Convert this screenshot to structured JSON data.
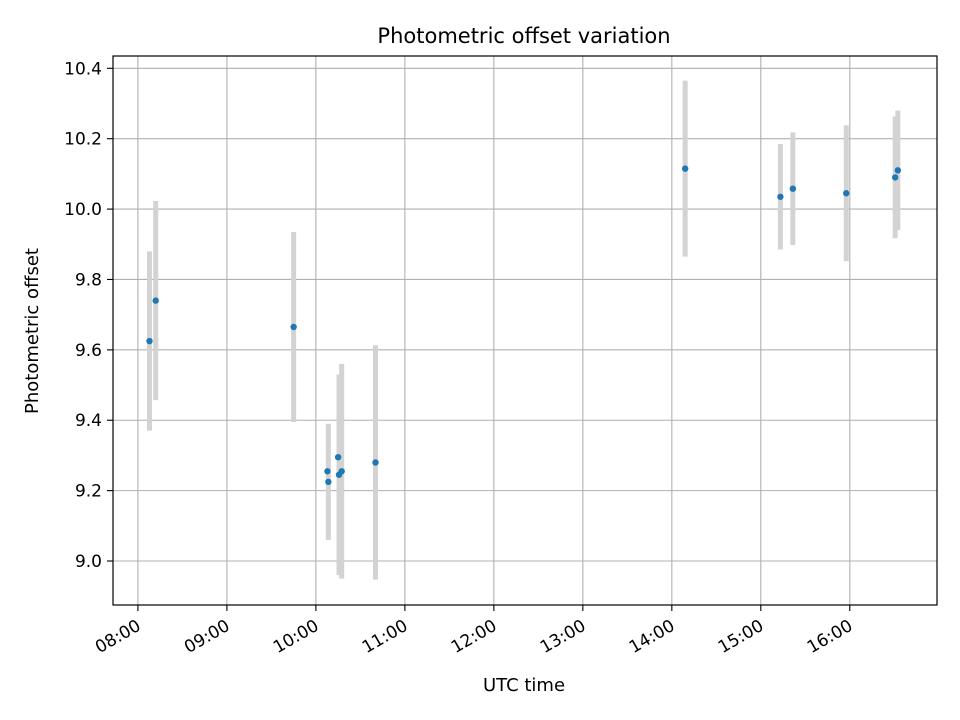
{
  "chart_data": {
    "type": "scatter",
    "title": "Photometric offset variation",
    "xlabel": "UTC time",
    "ylabel": "Photometric offset",
    "x_unit": "hours UTC",
    "xlim": [
      7.72,
      16.98
    ],
    "ylim": [
      8.875,
      10.435
    ],
    "x_ticks": [
      {
        "value": 8,
        "label": "08:00"
      },
      {
        "value": 9,
        "label": "09:00"
      },
      {
        "value": 10,
        "label": "10:00"
      },
      {
        "value": 11,
        "label": "11:00"
      },
      {
        "value": 12,
        "label": "12:00"
      },
      {
        "value": 13,
        "label": "13:00"
      },
      {
        "value": 14,
        "label": "14:00"
      },
      {
        "value": 15,
        "label": "15:00"
      },
      {
        "value": 16,
        "label": "16:00"
      }
    ],
    "y_ticks": [
      {
        "value": 9.0,
        "label": "9.0"
      },
      {
        "value": 9.2,
        "label": "9.2"
      },
      {
        "value": 9.4,
        "label": "9.4"
      },
      {
        "value": 9.6,
        "label": "9.6"
      },
      {
        "value": 9.8,
        "label": "9.8"
      },
      {
        "value": 10.0,
        "label": "10.0"
      },
      {
        "value": 10.2,
        "label": "10.2"
      },
      {
        "value": 10.4,
        "label": "10.4"
      }
    ],
    "grid": true,
    "legend": false,
    "marker_color": "#1f77b4",
    "errorbar_color": "#d3d3d3",
    "points": [
      {
        "x": 8.13,
        "y": 9.625,
        "yerr": 0.255
      },
      {
        "x": 8.2,
        "y": 9.74,
        "yerr": 0.283
      },
      {
        "x": 9.75,
        "y": 9.665,
        "yerr": 0.27
      },
      {
        "x": 10.13,
        "y": 9.255,
        "yerr": 0.0
      },
      {
        "x": 10.14,
        "y": 9.225,
        "yerr": 0.165
      },
      {
        "x": 10.25,
        "y": 9.295,
        "yerr": 0.0
      },
      {
        "x": 10.26,
        "y": 9.245,
        "yerr": 0.285
      },
      {
        "x": 10.29,
        "y": 9.255,
        "yerr": 0.305
      },
      {
        "x": 10.67,
        "y": 9.28,
        "yerr": 0.333
      },
      {
        "x": 14.15,
        "y": 10.115,
        "yerr": 0.25
      },
      {
        "x": 15.22,
        "y": 10.035,
        "yerr": 0.15
      },
      {
        "x": 15.36,
        "y": 10.058,
        "yerr": 0.16
      },
      {
        "x": 15.96,
        "y": 10.045,
        "yerr": 0.193
      },
      {
        "x": 16.51,
        "y": 10.09,
        "yerr": 0.173
      },
      {
        "x": 16.54,
        "y": 10.11,
        "yerr": 0.17
      }
    ]
  }
}
